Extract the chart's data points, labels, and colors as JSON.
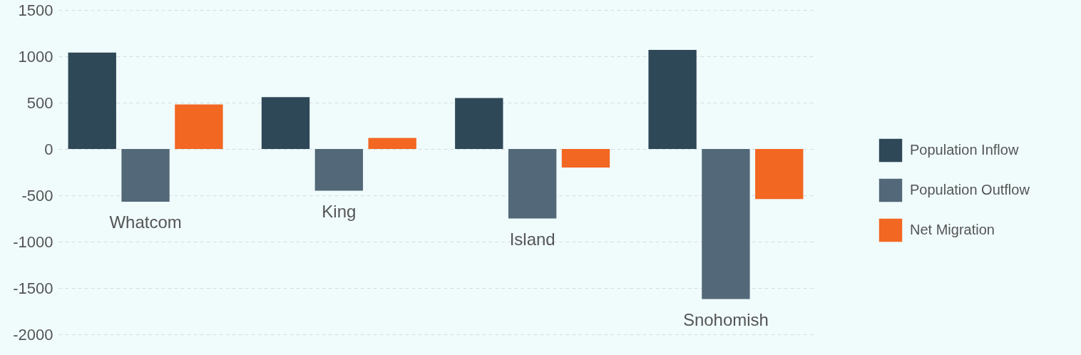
{
  "chart_data": {
    "type": "bar",
    "categories": [
      "Whatcom",
      "King",
      "Island",
      "Snohomish"
    ],
    "series": [
      {
        "name": "Population Inflow",
        "color": "#2f4858",
        "values": [
          1040,
          560,
          550,
          1070
        ]
      },
      {
        "name": "Population Outflow",
        "color": "#536878",
        "values": [
          -570,
          -450,
          -750,
          -1620
        ]
      },
      {
        "name": "Net Migration",
        "color": "#f26722",
        "values": [
          480,
          120,
          -200,
          -540
        ]
      }
    ],
    "ylim": [
      -2000,
      1500
    ],
    "yticks": [
      -2000,
      -1500,
      -1000,
      -500,
      0,
      500,
      1000,
      1500
    ],
    "grid": "y",
    "legend": "right"
  }
}
